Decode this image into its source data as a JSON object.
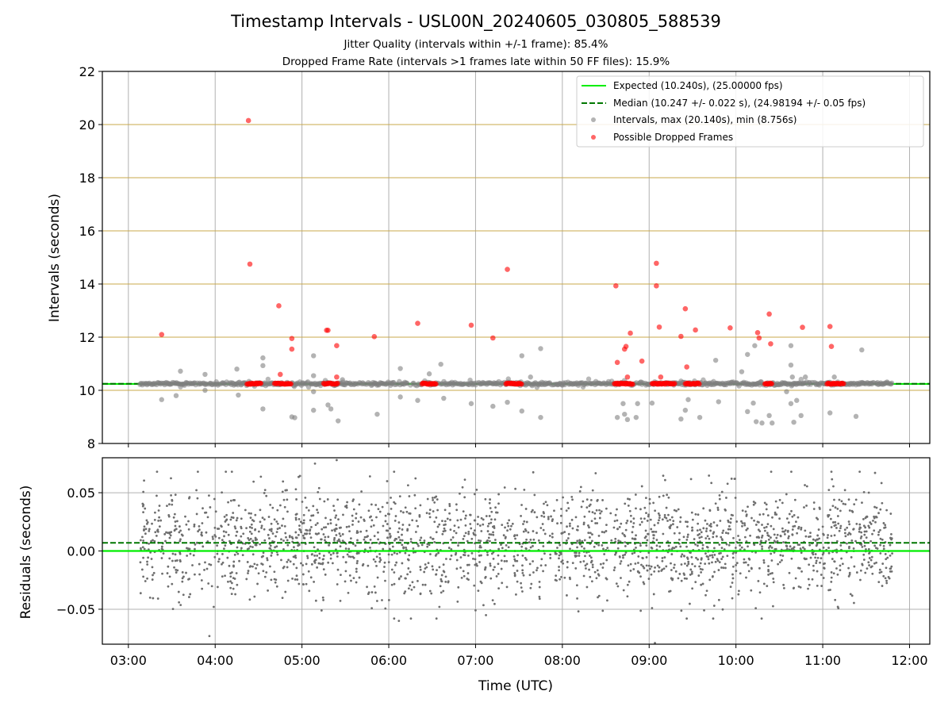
{
  "chart_data": [
    {
      "type": "scatter",
      "title": "Timestamp Intervals - USL00N_20240605_030805_588539",
      "subtitle_lines": [
        "Jitter Quality (intervals within +/-1 frame): 85.4%",
        "Dropped Frame Rate (intervals >1 frames late within 50 FF files): 15.9%"
      ],
      "xlabel": "",
      "ylabel": "Intervals (seconds)",
      "xlim": [
        "02:42",
        "12:14"
      ],
      "ylim": [
        8,
        22
      ],
      "yticks": [
        8,
        10,
        12,
        14,
        16,
        18,
        20,
        22
      ],
      "grid": true,
      "legend_position": "top-right",
      "legend": [
        "Expected (10.240s), (25.00000 fps)",
        "Median (10.247 +/- 0.022 s), (24.98194 +/- 0.05 fps)",
        "Intervals, max (20.140s), min (8.756s)",
        "Possible Dropped Frames"
      ],
      "expected_line": 10.24,
      "median_line": 10.247,
      "colors": {
        "expected": "#00ee00",
        "median": "#007700",
        "intervals": "#808080",
        "dropped": "#ff0000",
        "hgrid": "#c8a84b"
      },
      "series": [
        {
          "name": "Possible Dropped Frames",
          "points": [
            [
              "03:23",
              12.1
            ],
            [
              "04:23",
              20.15
            ],
            [
              "04:24",
              14.75
            ],
            [
              "04:44",
              13.18
            ],
            [
              "04:45",
              10.6
            ],
            [
              "04:53",
              11.95
            ],
            [
              "04:53",
              11.55
            ],
            [
              "05:17",
              12.26
            ],
            [
              "05:18",
              12.26
            ],
            [
              "05:24",
              11.68
            ],
            [
              "05:24",
              10.5
            ],
            [
              "05:50",
              12.02
            ],
            [
              "06:20",
              12.52
            ],
            [
              "06:57",
              12.45
            ],
            [
              "07:12",
              11.97
            ],
            [
              "07:22",
              14.55
            ],
            [
              "08:37",
              13.93
            ],
            [
              "08:38",
              11.05
            ],
            [
              "08:43",
              11.55
            ],
            [
              "08:44",
              11.65
            ],
            [
              "08:47",
              12.15
            ],
            [
              "08:45",
              10.5
            ],
            [
              "08:55",
              11.1
            ],
            [
              "09:05",
              13.93
            ],
            [
              "09:05",
              14.78
            ],
            [
              "09:07",
              12.38
            ],
            [
              "09:08",
              10.5
            ],
            [
              "09:22",
              12.03
            ],
            [
              "09:25",
              13.07
            ],
            [
              "09:26",
              10.88
            ],
            [
              "09:32",
              12.27
            ],
            [
              "09:56",
              12.35
            ],
            [
              "10:15",
              12.17
            ],
            [
              "10:16",
              11.97
            ],
            [
              "10:23",
              12.87
            ],
            [
              "10:24",
              11.75
            ],
            [
              "10:46",
              12.37
            ],
            [
              "11:05",
              12.4
            ],
            [
              "11:06",
              11.65
            ]
          ],
          "clusters_at_10_25": [
            [
              "04:22",
              "04:32"
            ],
            [
              "04:41",
              "04:53"
            ],
            [
              "05:15",
              "05:25"
            ],
            [
              "06:23",
              "06:33"
            ],
            [
              "07:21",
              "07:32"
            ],
            [
              "08:36",
              "08:49"
            ],
            [
              "09:02",
              "09:18"
            ],
            [
              "09:25",
              "09:35"
            ],
            [
              "10:20",
              "10:25"
            ],
            [
              "11:03",
              "11:15"
            ]
          ]
        },
        {
          "name": "Intervals",
          "range": [
            "03:08",
            "11:48"
          ],
          "baseline": 10.25,
          "outliers": [
            [
              "03:23",
              9.65
            ],
            [
              "03:33",
              9.8
            ],
            [
              "03:36",
              10.72
            ],
            [
              "03:53",
              10.6
            ],
            [
              "03:53",
              10.0
            ],
            [
              "04:15",
              10.8
            ],
            [
              "04:16",
              9.82
            ],
            [
              "04:33",
              11.22
            ],
            [
              "04:33",
              10.93
            ],
            [
              "04:33",
              9.3
            ],
            [
              "04:53",
              9.0
            ],
            [
              "04:55",
              8.97
            ],
            [
              "05:08",
              11.3
            ],
            [
              "05:08",
              10.55
            ],
            [
              "05:08",
              9.95
            ],
            [
              "05:08",
              9.25
            ],
            [
              "05:18",
              9.45
            ],
            [
              "05:20",
              9.3
            ],
            [
              "05:25",
              8.85
            ],
            [
              "05:28",
              10.4
            ],
            [
              "05:52",
              9.1
            ],
            [
              "06:08",
              10.82
            ],
            [
              "06:08",
              9.75
            ],
            [
              "06:20",
              9.62
            ],
            [
              "06:28",
              10.62
            ],
            [
              "06:36",
              10.98
            ],
            [
              "06:38",
              9.7
            ],
            [
              "06:57",
              9.5
            ],
            [
              "07:12",
              9.4
            ],
            [
              "07:22",
              9.55
            ],
            [
              "07:32",
              11.3
            ],
            [
              "07:32",
              9.22
            ],
            [
              "07:38",
              10.5
            ],
            [
              "07:45",
              11.57
            ],
            [
              "07:45",
              8.98
            ],
            [
              "08:38",
              8.98
            ],
            [
              "08:42",
              9.5
            ],
            [
              "08:43",
              9.1
            ],
            [
              "08:45",
              8.9
            ],
            [
              "08:51",
              8.98
            ],
            [
              "08:52",
              9.5
            ],
            [
              "09:02",
              9.52
            ],
            [
              "09:22",
              8.92
            ],
            [
              "09:25",
              9.25
            ],
            [
              "09:27",
              9.65
            ],
            [
              "09:35",
              8.98
            ],
            [
              "09:46",
              11.13
            ],
            [
              "09:48",
              9.57
            ],
            [
              "10:04",
              10.7
            ],
            [
              "10:08",
              11.35
            ],
            [
              "10:08",
              9.2
            ],
            [
              "10:12",
              9.52
            ],
            [
              "10:13",
              11.68
            ],
            [
              "10:14",
              8.82
            ],
            [
              "10:18",
              8.77
            ],
            [
              "10:23",
              9.05
            ],
            [
              "10:25",
              8.77
            ],
            [
              "10:35",
              9.95
            ],
            [
              "10:38",
              10.95
            ],
            [
              "10:38",
              11.68
            ],
            [
              "10:38",
              9.5
            ],
            [
              "10:39",
              10.5
            ],
            [
              "10:40",
              8.8
            ],
            [
              "10:45",
              9.05
            ],
            [
              "10:48",
              10.5
            ],
            [
              "10:42",
              9.62
            ],
            [
              "11:05",
              9.15
            ],
            [
              "11:08",
              10.5
            ],
            [
              "11:23",
              9.02
            ],
            [
              "11:27",
              11.52
            ]
          ]
        }
      ]
    },
    {
      "type": "scatter",
      "xlabel": "Time (UTC)",
      "ylabel": "Residuals (seconds)",
      "xlim": [
        "02:42",
        "12:14"
      ],
      "ylim": [
        -0.08,
        0.08
      ],
      "yticks": [
        -0.05,
        0.0,
        0.05
      ],
      "ytick_labels": [
        "−0.05",
        "0.00",
        "0.05"
      ],
      "xticks": [
        "03:00",
        "04:00",
        "05:00",
        "06:00",
        "07:00",
        "08:00",
        "09:00",
        "10:00",
        "11:00",
        "12:00"
      ],
      "grid": true,
      "zero_line": 0.0,
      "median_offset": 0.007,
      "series": [
        {
          "name": "residuals",
          "range": [
            "03:08",
            "11:48"
          ],
          "center": 0.007,
          "spread": 0.022,
          "count": 2300,
          "outliers": [
            [
              "03:56",
              -0.073
            ],
            [
              "03:59",
              -0.048
            ],
            [
              "05:09",
              0.075
            ],
            [
              "05:24",
              0.078
            ],
            [
              "05:32",
              -0.036
            ],
            [
              "05:47",
              0.064
            ],
            [
              "06:07",
              -0.06
            ],
            [
              "06:35",
              -0.048
            ],
            [
              "07:00",
              -0.051
            ],
            [
              "08:45",
              -0.039
            ],
            [
              "09:02",
              -0.049
            ],
            [
              "09:04",
              -0.079
            ],
            [
              "09:38",
              -0.051
            ],
            [
              "09:57",
              0.062
            ],
            [
              "11:06",
              0.068
            ]
          ]
        }
      ]
    }
  ]
}
